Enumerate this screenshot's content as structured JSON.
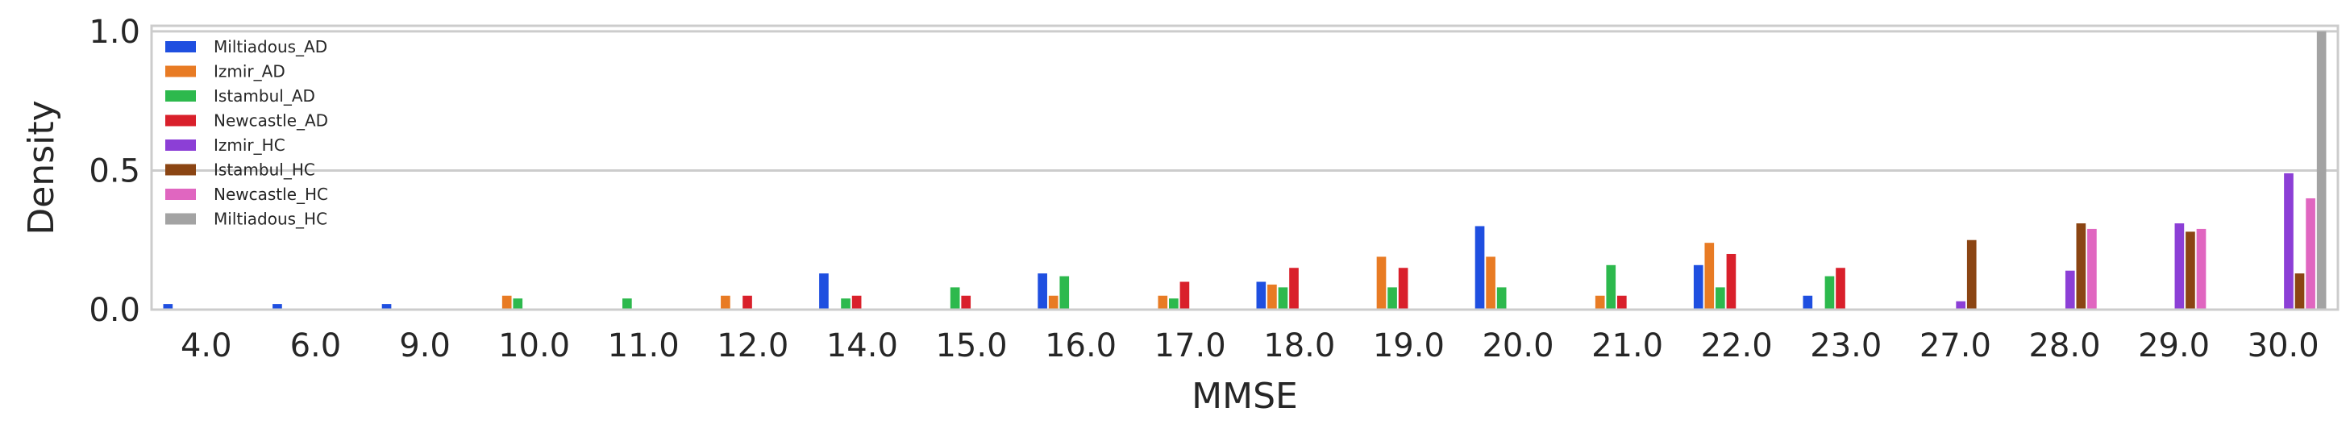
{
  "chart_data": {
    "type": "bar",
    "xlabel": "MMSE",
    "ylabel": "Density",
    "ylim": [
      0,
      1.02
    ],
    "yticks": [
      "0.0",
      "0.5",
      "1.0"
    ],
    "ytick_values": [
      0,
      0.5,
      1.0
    ],
    "grid": "horizontal",
    "legend_position": "top-left",
    "categories": [
      "4.0",
      "6.0",
      "9.0",
      "10.0",
      "11.0",
      "12.0",
      "14.0",
      "15.0",
      "16.0",
      "17.0",
      "18.0",
      "19.0",
      "20.0",
      "21.0",
      "22.0",
      "23.0",
      "27.0",
      "28.0",
      "29.0",
      "30.0"
    ],
    "series": [
      {
        "name": "Miltiadous_AD",
        "color": "#1f4fe0",
        "values": [
          0.02,
          0.02,
          0.02,
          0,
          0,
          0,
          0.13,
          0,
          0.13,
          0,
          0.1,
          0,
          0.3,
          0,
          0.16,
          0.05,
          0,
          0,
          0,
          0
        ]
      },
      {
        "name": "Izmir_AD",
        "color": "#e87b24",
        "values": [
          0,
          0,
          0,
          0.05,
          0,
          0.05,
          0,
          0,
          0.05,
          0.05,
          0.09,
          0.19,
          0.19,
          0.05,
          0.24,
          0,
          0,
          0,
          0,
          0
        ]
      },
      {
        "name": "Istambul_AD",
        "color": "#2db94d",
        "values": [
          0,
          0,
          0,
          0.04,
          0.04,
          0,
          0.04,
          0.08,
          0.12,
          0.04,
          0.08,
          0.08,
          0.08,
          0.16,
          0.08,
          0.12,
          0,
          0,
          0,
          0
        ]
      },
      {
        "name": "Newcastle_AD",
        "color": "#d9202b",
        "values": [
          0,
          0,
          0,
          0,
          0,
          0.05,
          0.05,
          0.05,
          0,
          0.1,
          0.15,
          0.15,
          0,
          0.05,
          0.2,
          0.15,
          0,
          0,
          0,
          0
        ]
      },
      {
        "name": "Izmir_HC",
        "color": "#8c3fd6",
        "values": [
          0,
          0,
          0,
          0,
          0,
          0,
          0,
          0,
          0,
          0,
          0,
          0,
          0,
          0,
          0,
          0,
          0.03,
          0.14,
          0.31,
          0.49
        ]
      },
      {
        "name": "Istambul_HC",
        "color": "#8b4513",
        "values": [
          0,
          0,
          0,
          0,
          0,
          0,
          0,
          0,
          0,
          0,
          0,
          0,
          0,
          0,
          0,
          0,
          0.25,
          0.31,
          0.28,
          0.13
        ]
      },
      {
        "name": "Newcastle_HC",
        "color": "#e066c0",
        "values": [
          0,
          0,
          0,
          0,
          0,
          0,
          0,
          0,
          0,
          0,
          0,
          0,
          0,
          0,
          0,
          0,
          0,
          0.29,
          0.29,
          0.4
        ]
      },
      {
        "name": "Miltiadous_HC",
        "color": "#a3a3a3",
        "values": [
          0,
          0,
          0,
          0,
          0,
          0,
          0,
          0,
          0,
          0,
          0,
          0,
          0,
          0,
          0,
          0,
          0,
          0,
          0,
          1.0
        ]
      }
    ]
  }
}
